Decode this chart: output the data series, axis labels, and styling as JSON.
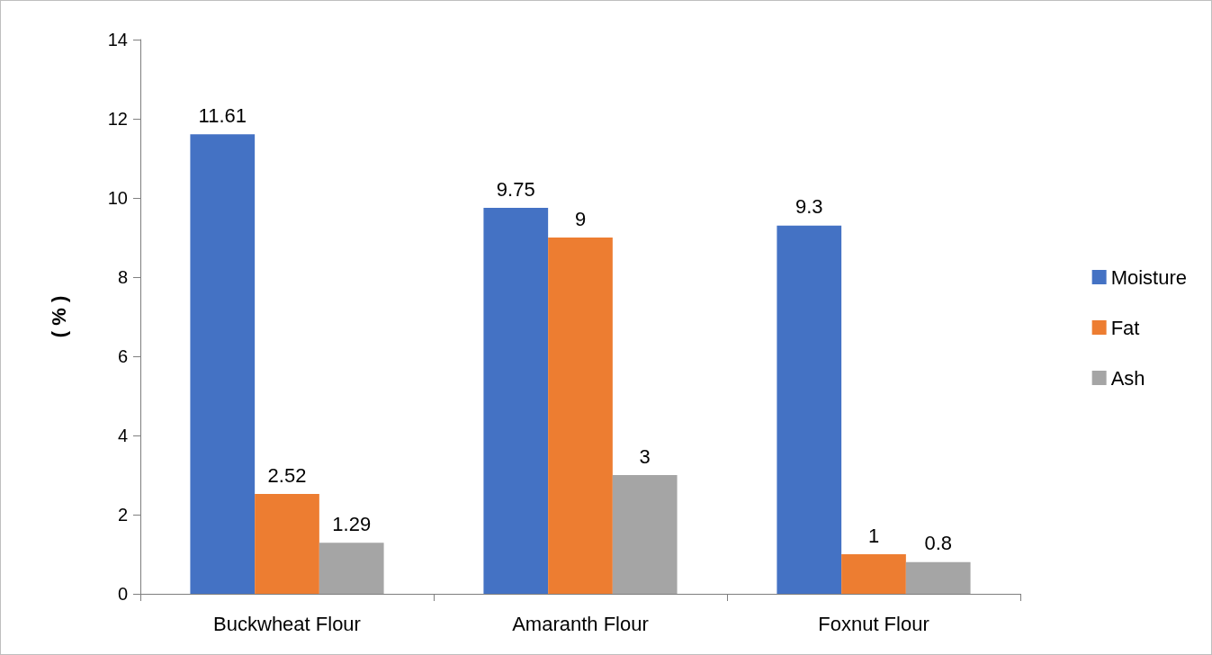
{
  "chart_data": {
    "type": "bar",
    "ylabel": "( % )",
    "categories": [
      "Buckwheat Flour",
      "Amaranth Flour",
      "Foxnut Flour"
    ],
    "series": [
      {
        "name": "Moisture",
        "color": "#4472c4",
        "values": [
          11.61,
          9.75,
          9.3
        ]
      },
      {
        "name": "Fat",
        "color": "#ed7d31",
        "values": [
          2.52,
          9,
          1
        ]
      },
      {
        "name": "Ash",
        "color": "#a5a5a5",
        "values": [
          1.29,
          3,
          0.8
        ]
      }
    ],
    "ylim": [
      0,
      14
    ],
    "yticks": [
      0,
      2,
      4,
      6,
      8,
      10,
      12,
      14
    ],
    "grid": false,
    "legend": "right",
    "data_labels": true
  }
}
